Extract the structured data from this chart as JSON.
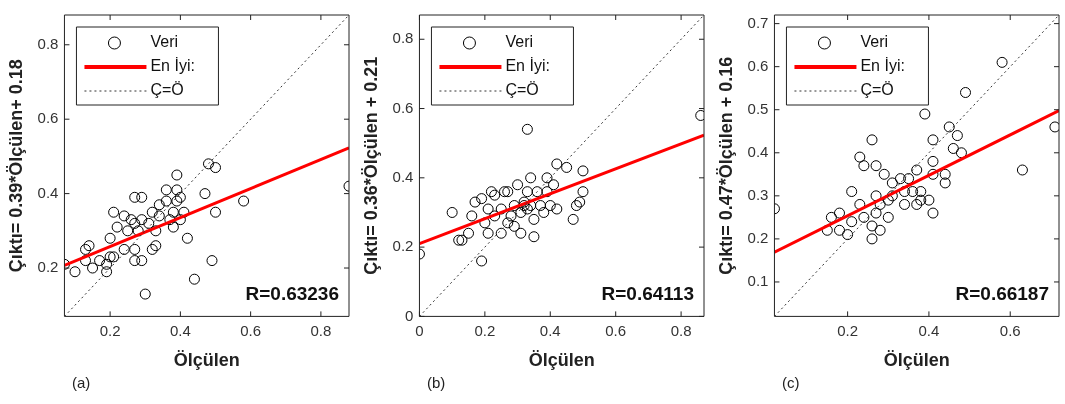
{
  "chart_data": [
    {
      "type": "scatter",
      "xlabel": "Ölçülen",
      "ylabel": "Çıktı= 0.39*Ölçülen+ 0.18",
      "xlim": [
        0.07,
        0.88
      ],
      "ylim": [
        0.07,
        0.88
      ],
      "xticks": [
        0.2,
        0.4,
        0.6,
        0.8
      ],
      "yticks": [
        0.2,
        0.4,
        0.6,
        0.8
      ],
      "legend": "top left",
      "annotations": [
        "R=0.63236",
        "(a)"
      ],
      "series": [
        {
          "name": "Veri",
          "type": "scatter",
          "marker": "circle",
          "color": "#000000",
          "x": [
            0.07,
            0.1,
            0.13,
            0.14,
            0.13,
            0.15,
            0.17,
            0.19,
            0.19,
            0.2,
            0.21,
            0.2,
            0.21,
            0.22,
            0.24,
            0.24,
            0.25,
            0.26,
            0.27,
            0.27,
            0.27,
            0.27,
            0.29,
            0.29,
            0.28,
            0.29,
            0.3,
            0.31,
            0.32,
            0.32,
            0.33,
            0.33,
            0.34,
            0.34,
            0.36,
            0.36,
            0.37,
            0.38,
            0.38,
            0.39,
            0.39,
            0.39,
            0.4,
            0.4,
            0.41,
            0.42,
            0.44,
            0.47,
            0.48,
            0.49,
            0.5,
            0.5,
            0.58,
            0.88
          ],
          "values": [
            0.21,
            0.19,
            0.25,
            0.26,
            0.22,
            0.2,
            0.22,
            0.21,
            0.19,
            0.23,
            0.23,
            0.28,
            0.35,
            0.31,
            0.25,
            0.34,
            0.3,
            0.33,
            0.39,
            0.32,
            0.22,
            0.25,
            0.22,
            0.39,
            0.3,
            0.33,
            0.13,
            0.32,
            0.35,
            0.25,
            0.26,
            0.3,
            0.37,
            0.34,
            0.41,
            0.38,
            0.33,
            0.31,
            0.35,
            0.41,
            0.38,
            0.45,
            0.39,
            0.33,
            0.35,
            0.28,
            0.17,
            0.4,
            0.48,
            0.22,
            0.47,
            0.35,
            0.38,
            0.42
          ]
        },
        {
          "name": "En İyi:",
          "type": "line",
          "marker": "none",
          "line_style": "solid",
          "color": "#ff0000",
          "x": [
            0.07,
            0.88
          ],
          "values": [
            0.207,
            0.523
          ]
        },
        {
          "name": "Ç=Ö",
          "type": "line",
          "marker": "none",
          "line_style": "dotted",
          "color": "#333333",
          "x": [
            0.07,
            0.88
          ],
          "values": [
            0.07,
            0.88
          ]
        }
      ]
    },
    {
      "type": "scatter",
      "xlabel": "Ölçülen",
      "ylabel": "Çıktı= 0.36*Ölçülen + 0.21",
      "xlim": [
        0,
        0.87
      ],
      "ylim": [
        0,
        0.87
      ],
      "xticks": [
        0,
        0.2,
        0.4,
        0.6,
        0.8
      ],
      "yticks": [
        0,
        0.2,
        0.4,
        0.6,
        0.8
      ],
      "legend": "top left",
      "annotations": [
        "R=0.64113",
        "(b)"
      ],
      "series": [
        {
          "name": "Veri",
          "type": "scatter",
          "marker": "circle",
          "color": "#000000",
          "x": [
            0.0,
            0.1,
            0.12,
            0.13,
            0.15,
            0.16,
            0.17,
            0.19,
            0.19,
            0.2,
            0.21,
            0.21,
            0.22,
            0.23,
            0.23,
            0.25,
            0.25,
            0.26,
            0.27,
            0.27,
            0.28,
            0.29,
            0.29,
            0.3,
            0.31,
            0.31,
            0.32,
            0.32,
            0.33,
            0.33,
            0.33,
            0.34,
            0.34,
            0.35,
            0.35,
            0.36,
            0.37,
            0.38,
            0.39,
            0.39,
            0.4,
            0.41,
            0.42,
            0.42,
            0.45,
            0.47,
            0.48,
            0.49,
            0.5,
            0.5,
            0.86
          ],
          "values": [
            0.18,
            0.3,
            0.22,
            0.22,
            0.24,
            0.29,
            0.33,
            0.34,
            0.16,
            0.27,
            0.31,
            0.24,
            0.36,
            0.29,
            0.35,
            0.24,
            0.31,
            0.36,
            0.27,
            0.36,
            0.29,
            0.32,
            0.26,
            0.38,
            0.24,
            0.3,
            0.32,
            0.33,
            0.54,
            0.36,
            0.31,
            0.4,
            0.32,
            0.23,
            0.28,
            0.36,
            0.32,
            0.3,
            0.4,
            0.36,
            0.32,
            0.38,
            0.31,
            0.44,
            0.43,
            0.28,
            0.32,
            0.33,
            0.42,
            0.36,
            0.58
          ]
        },
        {
          "name": "En İyi:",
          "type": "line",
          "marker": "none",
          "line_style": "solid",
          "color": "#ff0000",
          "x": [
            0,
            0.87
          ],
          "values": [
            0.21,
            0.523
          ]
        },
        {
          "name": "Ç=Ö",
          "type": "line",
          "marker": "none",
          "line_style": "dotted",
          "color": "#333333",
          "x": [
            0,
            0.87
          ],
          "values": [
            0,
            0.87
          ]
        }
      ]
    },
    {
      "type": "scatter",
      "xlabel": "Ölçülen",
      "ylabel": "Çıktı= 0.47*Ölçülen + 0.16",
      "xlim": [
        0.02,
        0.72
      ],
      "ylim": [
        0.02,
        0.72
      ],
      "xticks": [
        0.2,
        0.4,
        0.6
      ],
      "yticks": [
        0.1,
        0.2,
        0.3,
        0.4,
        0.5,
        0.6,
        0.7
      ],
      "legend": "top left",
      "annotations": [
        "R=0.66187",
        "(c)"
      ],
      "series": [
        {
          "name": "Veri",
          "type": "scatter",
          "marker": "circle",
          "color": "#000000",
          "x": [
            0.02,
            0.15,
            0.16,
            0.18,
            0.18,
            0.2,
            0.21,
            0.21,
            0.23,
            0.23,
            0.24,
            0.24,
            0.26,
            0.26,
            0.26,
            0.27,
            0.27,
            0.27,
            0.28,
            0.28,
            0.29,
            0.3,
            0.3,
            0.31,
            0.31,
            0.33,
            0.34,
            0.34,
            0.35,
            0.36,
            0.37,
            0.37,
            0.38,
            0.39,
            0.38,
            0.4,
            0.41,
            0.41,
            0.41,
            0.41,
            0.44,
            0.44,
            0.45,
            0.46,
            0.47,
            0.48,
            0.49,
            0.58,
            0.63,
            0.71
          ],
          "values": [
            0.27,
            0.22,
            0.25,
            0.26,
            0.22,
            0.21,
            0.31,
            0.24,
            0.28,
            0.39,
            0.37,
            0.25,
            0.43,
            0.23,
            0.2,
            0.26,
            0.37,
            0.3,
            0.28,
            0.22,
            0.35,
            0.29,
            0.25,
            0.3,
            0.33,
            0.34,
            0.28,
            0.31,
            0.34,
            0.31,
            0.36,
            0.28,
            0.31,
            0.49,
            0.29,
            0.29,
            0.38,
            0.43,
            0.35,
            0.26,
            0.35,
            0.33,
            0.46,
            0.41,
            0.44,
            0.4,
            0.54,
            0.61,
            0.36,
            0.46
          ]
        },
        {
          "name": "En İyi:",
          "type": "line",
          "marker": "none",
          "line_style": "solid",
          "color": "#ff0000",
          "x": [
            0.02,
            0.72
          ],
          "values": [
            0.169,
            0.498
          ]
        },
        {
          "name": "Ç=Ö",
          "type": "line",
          "marker": "none",
          "line_style": "dotted",
          "color": "#333333",
          "x": [
            0.02,
            0.72
          ],
          "values": [
            0.02,
            0.72
          ]
        }
      ]
    }
  ]
}
